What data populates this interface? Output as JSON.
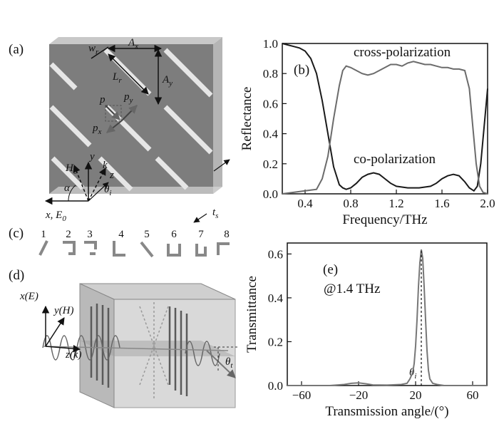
{
  "panels": {
    "a": {
      "label": "(a)",
      "symbols": {
        "wr": "w",
        "wr_sub": "r",
        "Lr": "L",
        "Lr_sub": "r",
        "Ax": "A",
        "Ax_sub": "x",
        "Ay": "A",
        "Ay_sub": "y",
        "p": "p",
        "py": "p",
        "py_sub": "y",
        "px": "p",
        "px_sub": "x",
        "H0": "H",
        "H0_sub": "0",
        "y": "y",
        "k": "k",
        "z": "z",
        "alpha": "α",
        "theta_i": "θ",
        "theta_i_sub": "i",
        "xE0": "x, E",
        "xE0_sub": "0",
        "ts": "t",
        "ts_sub": "s"
      }
    },
    "b": {
      "label": "(b)",
      "annotations": [
        "cross-polarization",
        "co-polarization"
      ]
    },
    "c": {
      "label": "(c)",
      "numbers": [
        "1",
        "2",
        "3",
        "4",
        "5",
        "6",
        "7",
        "8"
      ]
    },
    "d": {
      "label": "(d)",
      "symbols": {
        "xE": "x(E)",
        "yH": "y(H)",
        "k": "z(k)",
        "theta_t": "θ",
        "theta_t_sub": "t"
      }
    },
    "e": {
      "label": "(e)",
      "annotation": "@1.4 THz",
      "theta_label": "θ",
      "theta_sub": "i"
    }
  },
  "chart_data": [
    {
      "panel": "b",
      "type": "line",
      "xlabel": "Frequency/THz",
      "ylabel": "Reflectance",
      "xlim": [
        0.2,
        2.0
      ],
      "ylim": [
        0.0,
        1.0
      ],
      "xticks": [
        "0.4",
        "0.8",
        "1.2",
        "1.6",
        "2.0"
      ],
      "yticks": [
        "0.0",
        "0.2",
        "0.4",
        "0.6",
        "0.8",
        "1.0"
      ],
      "grid": false,
      "series": [
        {
          "name": "co-polarization",
          "color": "#1a1a1a",
          "x": [
            0.2,
            0.25,
            0.3,
            0.35,
            0.4,
            0.45,
            0.5,
            0.55,
            0.6,
            0.65,
            0.7,
            0.73,
            0.76,
            0.8,
            0.85,
            0.9,
            0.95,
            1.0,
            1.05,
            1.1,
            1.15,
            1.2,
            1.3,
            1.4,
            1.5,
            1.55,
            1.6,
            1.65,
            1.7,
            1.75,
            1.8,
            1.84,
            1.88,
            1.91,
            1.94,
            1.97,
            2.0
          ],
          "y": [
            1.0,
            0.99,
            0.98,
            0.97,
            0.95,
            0.9,
            0.8,
            0.62,
            0.4,
            0.18,
            0.06,
            0.04,
            0.03,
            0.04,
            0.07,
            0.11,
            0.13,
            0.14,
            0.13,
            0.1,
            0.07,
            0.05,
            0.04,
            0.04,
            0.05,
            0.07,
            0.1,
            0.12,
            0.13,
            0.12,
            0.08,
            0.04,
            0.02,
            0.05,
            0.2,
            0.45,
            0.7
          ]
        },
        {
          "name": "cross-polarization",
          "color": "#6b6b6b",
          "x": [
            0.2,
            0.3,
            0.4,
            0.5,
            0.55,
            0.6,
            0.65,
            0.7,
            0.73,
            0.76,
            0.8,
            0.85,
            0.9,
            0.95,
            1.0,
            1.05,
            1.1,
            1.15,
            1.2,
            1.25,
            1.3,
            1.35,
            1.4,
            1.45,
            1.5,
            1.55,
            1.6,
            1.65,
            1.7,
            1.75,
            1.8,
            1.84,
            1.87,
            1.9,
            1.93,
            1.96,
            2.0
          ],
          "y": [
            0.0,
            0.01,
            0.02,
            0.03,
            0.1,
            0.25,
            0.5,
            0.72,
            0.82,
            0.85,
            0.84,
            0.82,
            0.8,
            0.79,
            0.8,
            0.82,
            0.84,
            0.86,
            0.86,
            0.85,
            0.87,
            0.88,
            0.87,
            0.86,
            0.86,
            0.85,
            0.84,
            0.84,
            0.83,
            0.83,
            0.82,
            0.7,
            0.45,
            0.2,
            0.05,
            0.01,
            0.0
          ]
        }
      ]
    },
    {
      "panel": "e",
      "type": "line",
      "xlabel": "Transmission angle/(°)",
      "ylabel": "Transmittance",
      "xlim": [
        -70,
        70
      ],
      "ylim": [
        0.0,
        0.65
      ],
      "xticks": [
        "−60",
        "−20",
        "20",
        "60"
      ],
      "yticks": [
        "0.0",
        "0.2",
        "0.4",
        "0.6"
      ],
      "grid": false,
      "marker_x": 24,
      "series": [
        {
          "name": "transmittance",
          "color": "#777777",
          "x": [
            -70,
            -40,
            -30,
            -25,
            -20,
            -15,
            -10,
            0,
            10,
            14,
            16,
            18,
            19,
            20,
            21,
            22,
            23,
            24,
            25,
            26,
            27,
            28,
            29,
            30,
            32,
            35,
            40,
            70
          ],
          "y": [
            0.0,
            0.0,
            0.005,
            0.01,
            0.012,
            0.008,
            0.003,
            0.002,
            0.005,
            0.01,
            0.03,
            0.06,
            0.1,
            0.18,
            0.3,
            0.45,
            0.56,
            0.62,
            0.58,
            0.45,
            0.3,
            0.16,
            0.07,
            0.03,
            0.01,
            0.005,
            0.0,
            0.0
          ]
        }
      ]
    }
  ]
}
